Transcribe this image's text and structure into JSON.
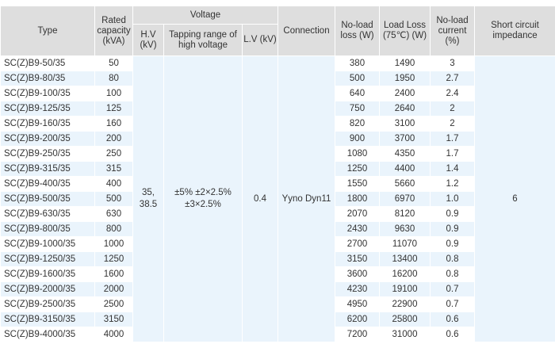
{
  "caption": "",
  "headers": {
    "type": "Type",
    "rated_capacity": "Rated capacity (kVA)",
    "voltage": "Voltage",
    "hv": "H.V (kV)",
    "tapping": "Tapping range of high voltage",
    "lv": "L.V (kV)",
    "connection": "Connection",
    "no_load_loss": "No-load loss (W)",
    "load_loss": "Load Loss (75℃) (W)",
    "no_load_current": "No-load current (%)",
    "impedance": "Short circuit impedance"
  },
  "merged": {
    "hv": "35, 38.5",
    "tapping": "±5% ±2×2.5% ±3×2.5%",
    "lv": "0.4",
    "connection": "Yyno Dyn11",
    "impedance": "6"
  },
  "rows": [
    {
      "type": "SC(Z)B9-50/35",
      "capacity": "50",
      "no_load_loss": "380",
      "load_loss": "1490",
      "no_load_current": "3"
    },
    {
      "type": "SC(Z)B9-80/35",
      "capacity": "80",
      "no_load_loss": "500",
      "load_loss": "1950",
      "no_load_current": "2.7"
    },
    {
      "type": "SC(Z)B9-100/35",
      "capacity": "100",
      "no_load_loss": "640",
      "load_loss": "2400",
      "no_load_current": "2.4"
    },
    {
      "type": "SC(Z)B9-125/35",
      "capacity": "125",
      "no_load_loss": "750",
      "load_loss": "2640",
      "no_load_current": "2"
    },
    {
      "type": "SC(Z)B9-160/35",
      "capacity": "160",
      "no_load_loss": "820",
      "load_loss": "3100",
      "no_load_current": "2"
    },
    {
      "type": "SC(Z)B9-200/35",
      "capacity": "200",
      "no_load_loss": "900",
      "load_loss": "3700",
      "no_load_current": "1.7"
    },
    {
      "type": "SC(Z)B9-250/35",
      "capacity": "250",
      "no_load_loss": "1080",
      "load_loss": "4350",
      "no_load_current": "1.7"
    },
    {
      "type": "SC(Z)B9-315/35",
      "capacity": "315",
      "no_load_loss": "1250",
      "load_loss": "4400",
      "no_load_current": "1.4"
    },
    {
      "type": "SC(Z)B9-400/35",
      "capacity": "400",
      "no_load_loss": "1550",
      "load_loss": "5660",
      "no_load_current": "1.2"
    },
    {
      "type": "SC(Z)B9-500/35",
      "capacity": "500",
      "no_load_loss": "1800",
      "load_loss": "6970",
      "no_load_current": "1.0"
    },
    {
      "type": "SC(Z)B9-630/35",
      "capacity": "630",
      "no_load_loss": "2070",
      "load_loss": "8120",
      "no_load_current": "0.9"
    },
    {
      "type": "SC(Z)B9-800/35",
      "capacity": "800",
      "no_load_loss": "2430",
      "load_loss": "9630",
      "no_load_current": "0.9"
    },
    {
      "type": "SC(Z)B9-1000/35",
      "capacity": "1000",
      "no_load_loss": "2700",
      "load_loss": "11070",
      "no_load_current": "0.9"
    },
    {
      "type": "SC(Z)B9-1250/35",
      "capacity": "1250",
      "no_load_loss": "3150",
      "load_loss": "13400",
      "no_load_current": "0.8"
    },
    {
      "type": "SC(Z)B9-1600/35",
      "capacity": "1600",
      "no_load_loss": "3600",
      "load_loss": "16200",
      "no_load_current": "0.8"
    },
    {
      "type": "SC(Z)B9-2000/35",
      "capacity": "2000",
      "no_load_loss": "4230",
      "load_loss": "19100",
      "no_load_current": "0.7"
    },
    {
      "type": "SC(Z)B9-2500/35",
      "capacity": "2500",
      "no_load_loss": "4950",
      "load_loss": "22900",
      "no_load_current": "0.7"
    },
    {
      "type": "SC(Z)B9-3150/35",
      "capacity": "3150",
      "no_load_loss": "6200",
      "load_loss": "25800",
      "no_load_current": "0.6"
    },
    {
      "type": "SC(Z)B9-4000/35",
      "capacity": "4000",
      "no_load_loss": "7200",
      "load_loss": "31000",
      "no_load_current": "0.6"
    }
  ]
}
